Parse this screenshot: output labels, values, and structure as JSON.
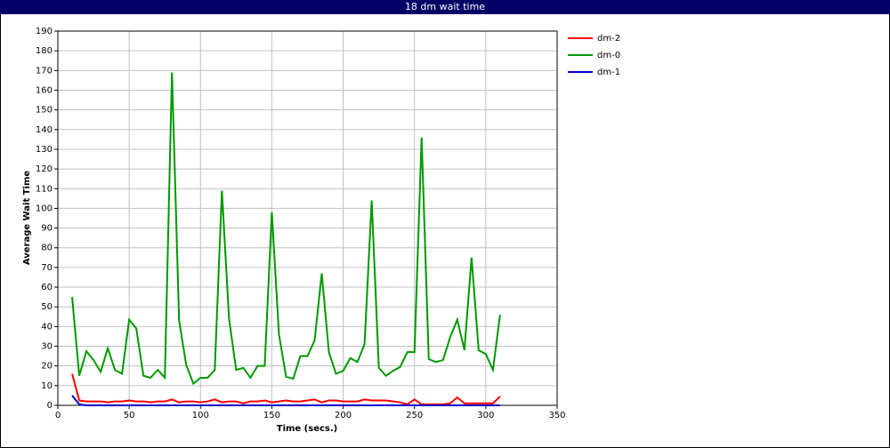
{
  "chart_data": {
    "type": "line",
    "title": "18 dm wait time",
    "xlabel": "Time (secs.)",
    "ylabel": "Average Wait Time",
    "x": [
      10,
      15,
      20,
      25,
      30,
      35,
      40,
      45,
      50,
      55,
      60,
      65,
      70,
      75,
      80,
      85,
      90,
      95,
      100,
      105,
      110,
      115,
      120,
      125,
      130,
      135,
      140,
      145,
      150,
      155,
      160,
      165,
      170,
      175,
      180,
      185,
      190,
      195,
      200,
      205,
      210,
      215,
      220,
      225,
      230,
      235,
      240,
      245,
      250,
      255,
      260,
      265,
      270,
      275,
      280,
      285,
      290,
      295,
      300,
      305,
      310
    ],
    "series": [
      {
        "name": "dm-2",
        "color": "#ff0000",
        "values": [
          16,
          2.5,
          2,
          2,
          2,
          1.5,
          2,
          2,
          2.5,
          2,
          2,
          1.5,
          2,
          2,
          3,
          1.5,
          2,
          2,
          1.5,
          2,
          3,
          1.5,
          2,
          2,
          1,
          2,
          2,
          2.5,
          1.5,
          2,
          2.5,
          2,
          2,
          2.5,
          3,
          1.5,
          2.5,
          2.5,
          2,
          2,
          2,
          3,
          2.5,
          2.5,
          2.5,
          2,
          1.5,
          0.5,
          3,
          0.5,
          0.5,
          0.5,
          0.5,
          1,
          4,
          1,
          1,
          1,
          1,
          1,
          4.5
        ]
      },
      {
        "name": "dm-0",
        "color": "#009900",
        "values": [
          55,
          15,
          27.5,
          23,
          17,
          29,
          18,
          16,
          43.5,
          39,
          15,
          14,
          18,
          14,
          169,
          43,
          20.5,
          11,
          14,
          14,
          18,
          109,
          44,
          18,
          19,
          14,
          20,
          20,
          98,
          36,
          14.5,
          13.5,
          25,
          25,
          33,
          67,
          27,
          16,
          17.5,
          24,
          22,
          31,
          104,
          19,
          15,
          17.5,
          19.5,
          27,
          27,
          136,
          23.5,
          22,
          23,
          34.5,
          43.5,
          28,
          75,
          28,
          26,
          18,
          46
        ]
      },
      {
        "name": "dm-1",
        "color": "#0000cc",
        "values": [
          5,
          0.5,
          0,
          0,
          0,
          0,
          0,
          0,
          0,
          0,
          0,
          0,
          0,
          0,
          0,
          0,
          0,
          0,
          0,
          0,
          0,
          0,
          0,
          0,
          0,
          0,
          0,
          0,
          0,
          0,
          0,
          0,
          0,
          0,
          0,
          0,
          0,
          0,
          0,
          0,
          0,
          0,
          0,
          0,
          0,
          0,
          0,
          0,
          0,
          0,
          0,
          0,
          0,
          0,
          0,
          0,
          0,
          0,
          0,
          0,
          0
        ]
      }
    ],
    "xlim": [
      0,
      350
    ],
    "ylim": [
      0,
      190
    ],
    "xticks": [
      0,
      50,
      100,
      150,
      200,
      250,
      300,
      350
    ],
    "yticks": [
      0,
      10,
      20,
      30,
      40,
      50,
      60,
      70,
      80,
      90,
      100,
      110,
      120,
      130,
      140,
      150,
      160,
      170,
      180,
      190
    ],
    "grid": true,
    "legend": "right"
  }
}
